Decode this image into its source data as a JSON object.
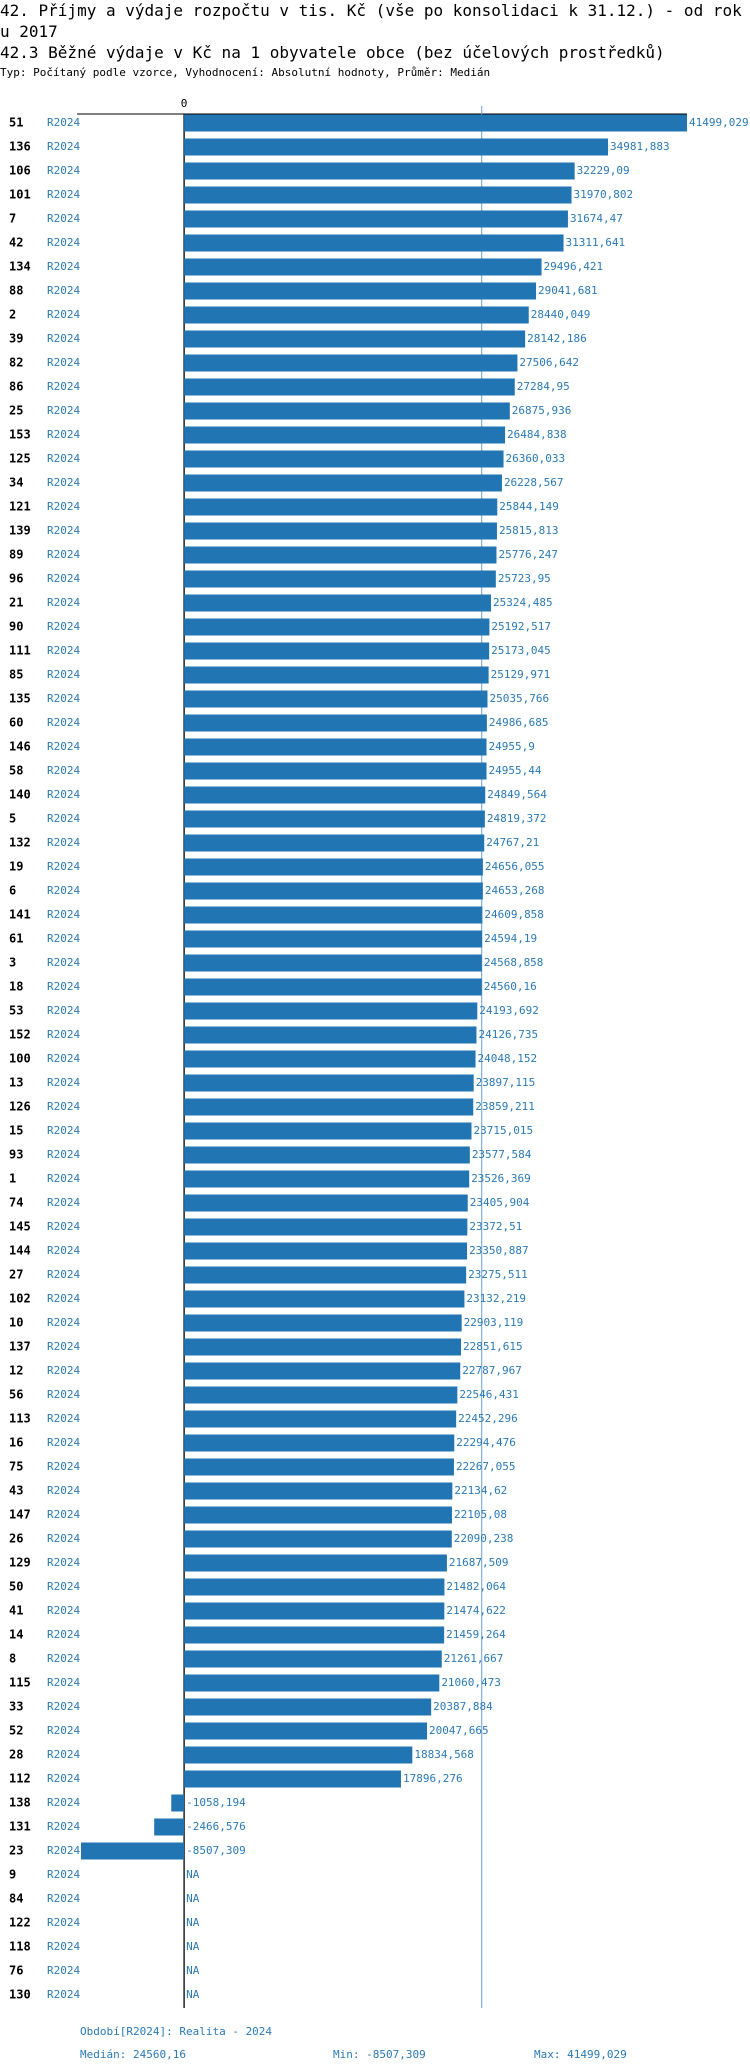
{
  "chart_data": {
    "type": "bar",
    "title": "42. Příjmy a výdaje rozpočtu v tis. Kč (vše po konsolidaci k 31.12.) - od roku 2017",
    "subtitle": "42.3 Běžné výdaje v Kč na 1 obyvatele obce (bez účelových prostředků)",
    "description": "Typ: Počítaný podle vzorce, Vyhodnocení: Absolutní hodnoty, Průměr: Medián",
    "categories": [
      "51",
      "136",
      "106",
      "101",
      "7",
      "42",
      "134",
      "88",
      "2",
      "39",
      "82",
      "86",
      "25",
      "153",
      "125",
      "34",
      "121",
      "139",
      "89",
      "96",
      "21",
      "90",
      "111",
      "85",
      "135",
      "60",
      "146",
      "58",
      "140",
      "5",
      "132",
      "19",
      "6",
      "141",
      "61",
      "3",
      "18",
      "53",
      "152",
      "100",
      "13",
      "126",
      "15",
      "93",
      "1",
      "74",
      "145",
      "144",
      "27",
      "102",
      "10",
      "137",
      "12",
      "56",
      "113",
      "16",
      "75",
      "43",
      "147",
      "26",
      "129",
      "50",
      "41",
      "14",
      "8",
      "115",
      "33",
      "52",
      "28",
      "112",
      "138",
      "131",
      "23",
      "9",
      "84",
      "122",
      "118",
      "76",
      "130"
    ],
    "series": [
      {
        "name": "R2024",
        "color": "#2275b3",
        "values": [
          41499.029,
          34981.883,
          32229.09,
          31970.802,
          31674.47,
          31311.641,
          29496.421,
          29041.681,
          28440.049,
          28142.186,
          27506.642,
          27284.95,
          26875.936,
          26484.838,
          26360.033,
          26228.567,
          25844.149,
          25815.813,
          25776.247,
          25723.95,
          25324.485,
          25192.517,
          25173.045,
          25129.971,
          25035.766,
          24986.685,
          24955.9,
          24955.44,
          24849.564,
          24819.372,
          24767.21,
          24656.055,
          24653.268,
          24609.858,
          24594.19,
          24568.858,
          24560.16,
          24193.692,
          24126.735,
          24048.152,
          23897.115,
          23859.211,
          23715.015,
          23577.584,
          23526.369,
          23405.904,
          23372.51,
          23350.887,
          23275.511,
          23132.219,
          22903.119,
          22851.615,
          22787.967,
          22546.431,
          22452.296,
          22294.476,
          22267.055,
          22134.62,
          22105.08,
          22090.238,
          21687.509,
          21482.064,
          21474.622,
          21459.264,
          21261.667,
          21060.473,
          20387.884,
          20047.665,
          18834.568,
          17896.276,
          -1058.194,
          -2466.576,
          -8507.309,
          null,
          null,
          null,
          null,
          null,
          null
        ],
        "value_labels": [
          "41499,029",
          "34981,883",
          "32229,09",
          "31970,802",
          "31674,47",
          "31311,641",
          "29496,421",
          "29041,681",
          "28440,049",
          "28142,186",
          "27506,642",
          "27284,95",
          "26875,936",
          "26484,838",
          "26360,033",
          "26228,567",
          "25844,149",
          "25815,813",
          "25776,247",
          "25723,95",
          "25324,485",
          "25192,517",
          "25173,045",
          "25129,971",
          "25035,766",
          "24986,685",
          "24955,9",
          "24955,44",
          "24849,564",
          "24819,372",
          "24767,21",
          "24656,055",
          "24653,268",
          "24609,858",
          "24594,19",
          "24568,858",
          "24560,16",
          "24193,692",
          "24126,735",
          "24048,152",
          "23897,115",
          "23859,211",
          "23715,015",
          "23577,584",
          "23526,369",
          "23405,904",
          "23372,51",
          "23350,887",
          "23275,511",
          "23132,219",
          "22903,119",
          "22851,615",
          "22787,967",
          "22546,431",
          "22452,296",
          "22294,476",
          "22267,055",
          "22134,62",
          "22105,08",
          "22090,238",
          "21687,509",
          "21482,064",
          "21474,622",
          "21459,264",
          "21261,667",
          "21060,473",
          "20387,884",
          "20047,665",
          "18834,568",
          "17896,276",
          "-1058,194",
          "-2466,576",
          "-8507,309",
          "NA",
          "NA",
          "NA",
          "NA",
          "NA",
          "NA"
        ]
      }
    ],
    "xlim": [
      -8507.309,
      41499.029
    ],
    "xticks": [
      0
    ],
    "median": 24560.16,
    "median_color": "#6a9fd0",
    "footer": {
      "period": "Období[R2024]: Realita - 2024",
      "median": "Medián: 24560,16",
      "min": "Min: -8507,309",
      "max": "Max: 41499,029"
    }
  }
}
